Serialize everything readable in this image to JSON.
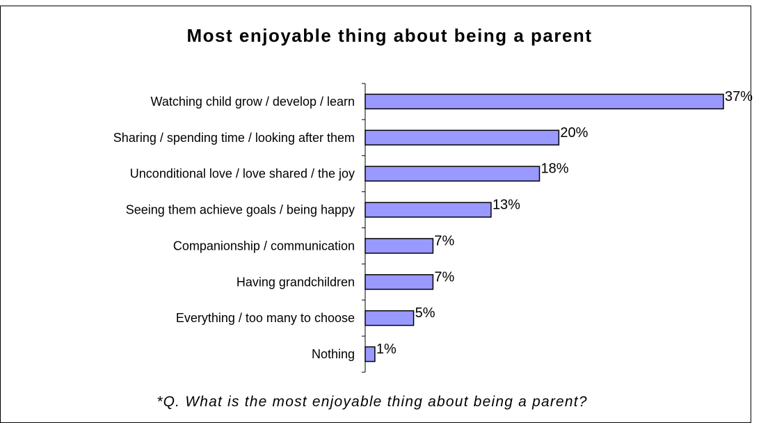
{
  "colors": {
    "bar_fill": "#9999ff",
    "bar_stroke": "#000000",
    "axis": "#000000",
    "text": "#000000"
  },
  "footnote": "*Q. What is the most enjoyable thing about being a parent?",
  "chart_data": {
    "type": "bar",
    "orientation": "horizontal",
    "title": "Most enjoyable thing about being a parent",
    "xlabel": "",
    "ylabel": "",
    "xlim": [
      0,
      37
    ],
    "grid": false,
    "legend": "none",
    "categories": [
      "Watching child grow  / develop / learn",
      "Sharing / spending time / looking after them",
      "Unconditional love / love shared / the joy",
      "Seeing them achieve goals / being happy",
      "Companionship / communication",
      "Having grandchildren",
      "Everything / too many to choose",
      "Nothing"
    ],
    "values": [
      37,
      20,
      18,
      13,
      7,
      7,
      5,
      1
    ],
    "data_labels": [
      "37%",
      "20%",
      "18%",
      "13%",
      "7%",
      "7%",
      "5%",
      "1%"
    ]
  }
}
